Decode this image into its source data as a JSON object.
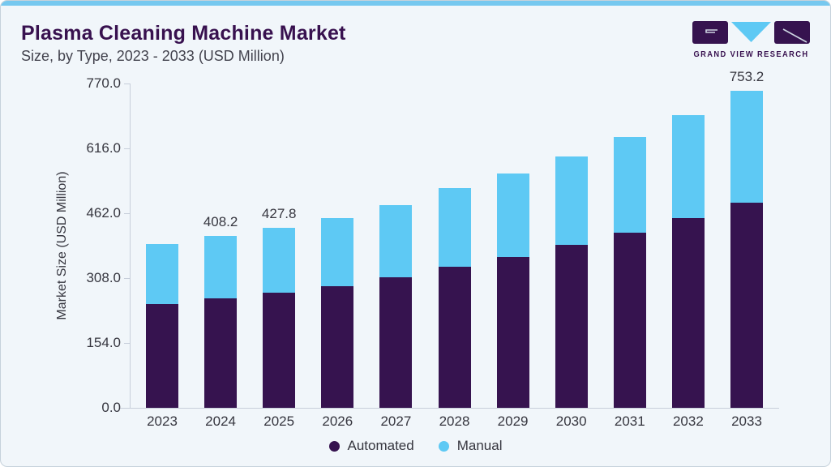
{
  "header": {
    "title": "Plasma Cleaning Machine Market",
    "subtitle": "Size, by Type, 2023 - 2033 (USD Million)"
  },
  "logo": {
    "brand": "GRAND VIEW RESEARCH"
  },
  "colors": {
    "automated": "#36134f",
    "manual": "#5ec9f4",
    "title": "#38114f",
    "accent_bar": "#76c8ef",
    "background": "#f1f6fa",
    "axis_line": "#c7ceda",
    "text": "#36363f"
  },
  "chart_data": {
    "type": "bar",
    "stacked": true,
    "title": "Plasma Cleaning Machine Market Size, by Type, 2023 - 2033 (USD Million)",
    "categories": [
      "2023",
      "2024",
      "2025",
      "2026",
      "2027",
      "2028",
      "2029",
      "2030",
      "2031",
      "2032",
      "2033"
    ],
    "series": [
      {
        "name": "Automated",
        "color": "#36134f",
        "values": [
          246.5,
          260.4,
          273.7,
          288.1,
          310.7,
          334.5,
          357.5,
          387.3,
          415.1,
          449.5,
          486.5
        ]
      },
      {
        "name": "Manual",
        "color": "#5ec9f4",
        "values": [
          142.2,
          147.8,
          154.1,
          162.6,
          171.2,
          186.4,
          198.3,
          210.2,
          228.0,
          245.1,
          266.7
        ]
      }
    ],
    "totals": [
      388.7,
      408.2,
      427.8,
      450.7,
      481.9,
      520.9,
      555.8,
      597.5,
      643.1,
      694.6,
      753.2
    ],
    "bar_total_labels": [
      "",
      "408.2",
      "427.8",
      "",
      "",
      "",
      "",
      "",
      "",
      "",
      "753.2"
    ],
    "ylabel": "Market Size (USD Million)",
    "ytick_labels": [
      "0.0",
      "154.0",
      "308.0",
      "462.0",
      "616.0",
      "770.0"
    ],
    "ylim": [
      0,
      770
    ],
    "grid": false,
    "legend_position": "bottom"
  }
}
